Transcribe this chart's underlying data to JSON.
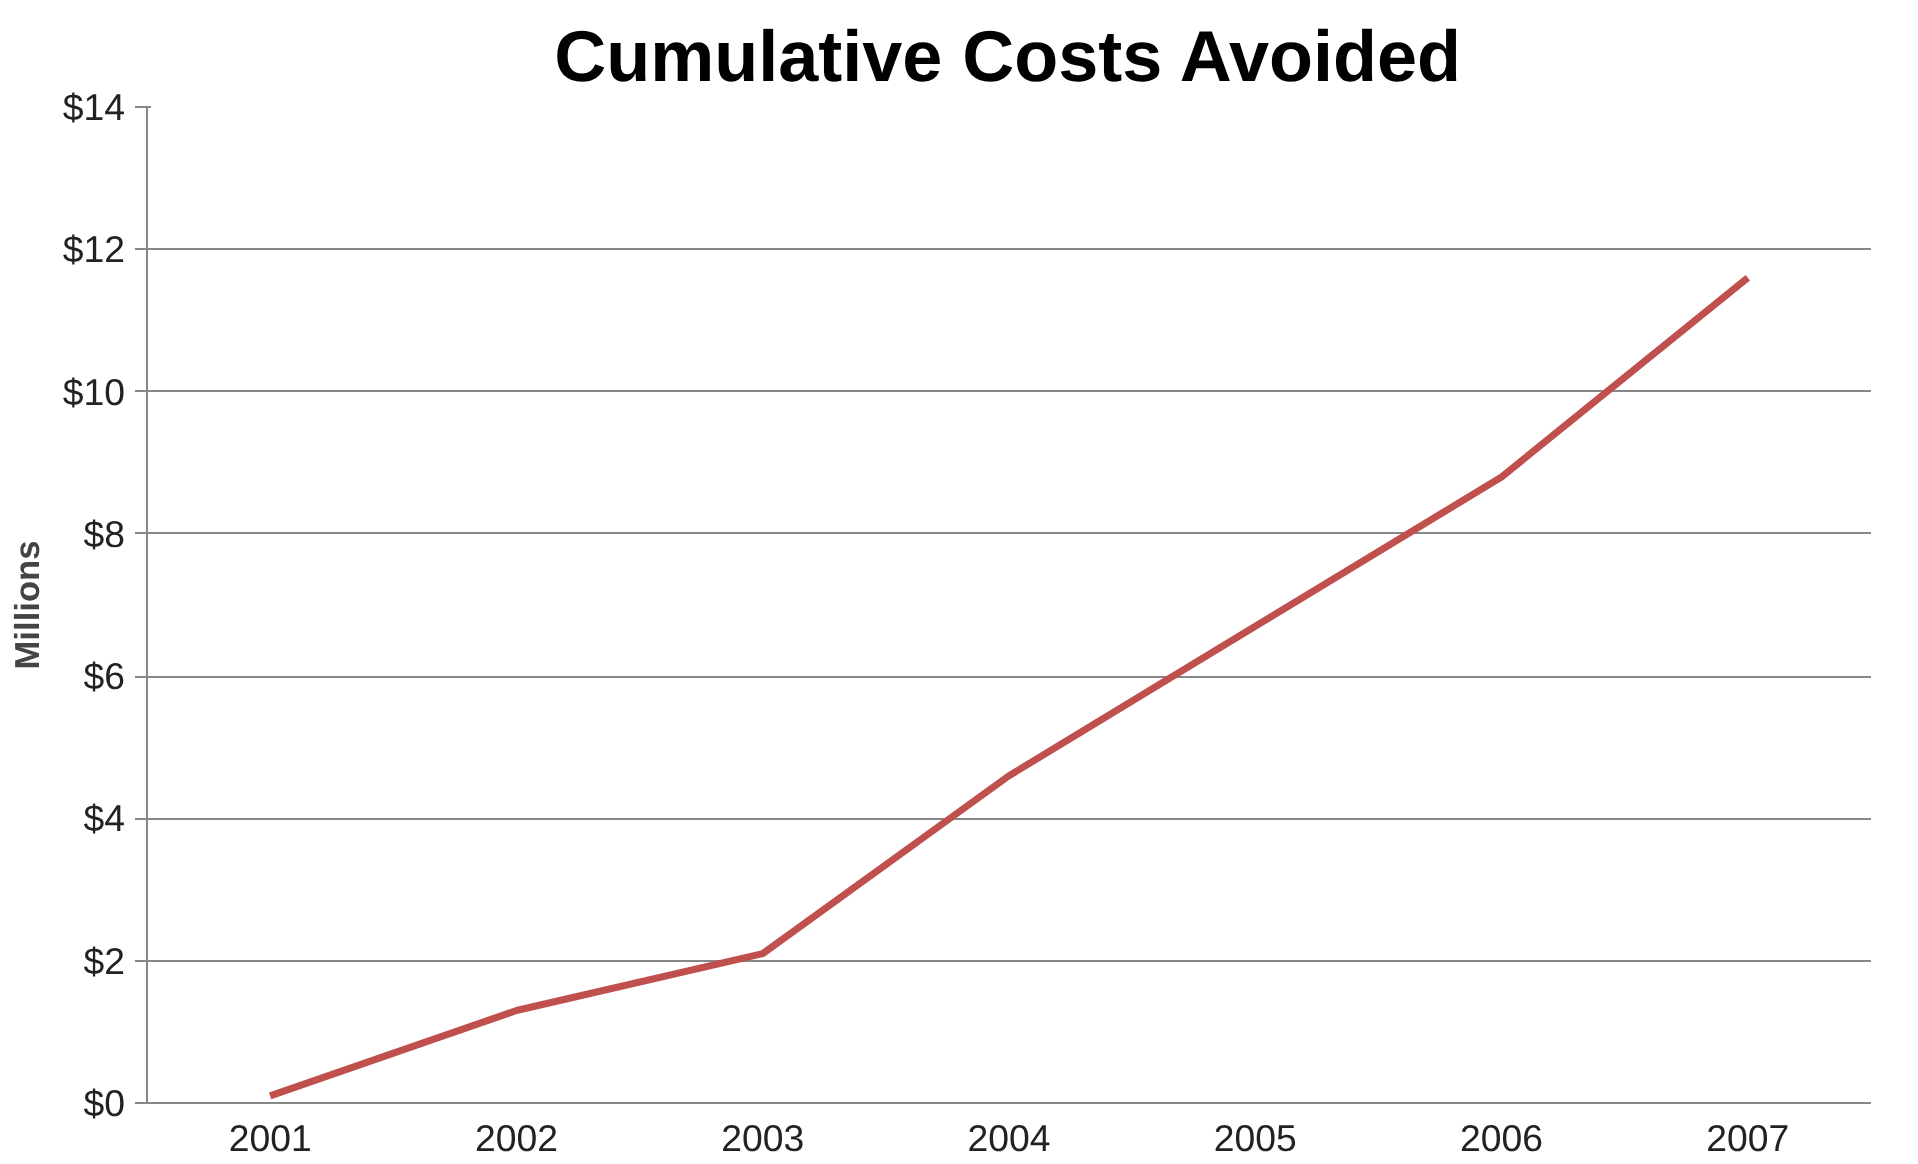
{
  "chart_data": {
    "type": "line",
    "title": "Cumulative Costs Avoided",
    "ylabel": "Millions",
    "categories": [
      "2001",
      "2002",
      "2003",
      "2004",
      "2005",
      "2006",
      "2007"
    ],
    "series": [
      {
        "color": "#c0504d",
        "values": [
          0.1,
          1.3,
          2.1,
          4.6,
          6.7,
          8.8,
          11.6
        ]
      }
    ],
    "ylim": [
      0,
      14
    ],
    "yticks": [
      {
        "value": 0,
        "label": "$0"
      },
      {
        "value": 2,
        "label": "$2"
      },
      {
        "value": 4,
        "label": "$4"
      },
      {
        "value": 6,
        "label": "$6"
      },
      {
        "value": 8,
        "label": "$8"
      },
      {
        "value": 10,
        "label": "$10"
      },
      {
        "value": 12,
        "label": "$12"
      },
      {
        "value": 14,
        "label": "$14"
      }
    ],
    "grid": "y",
    "marker": "none",
    "line_style": "solid"
  }
}
